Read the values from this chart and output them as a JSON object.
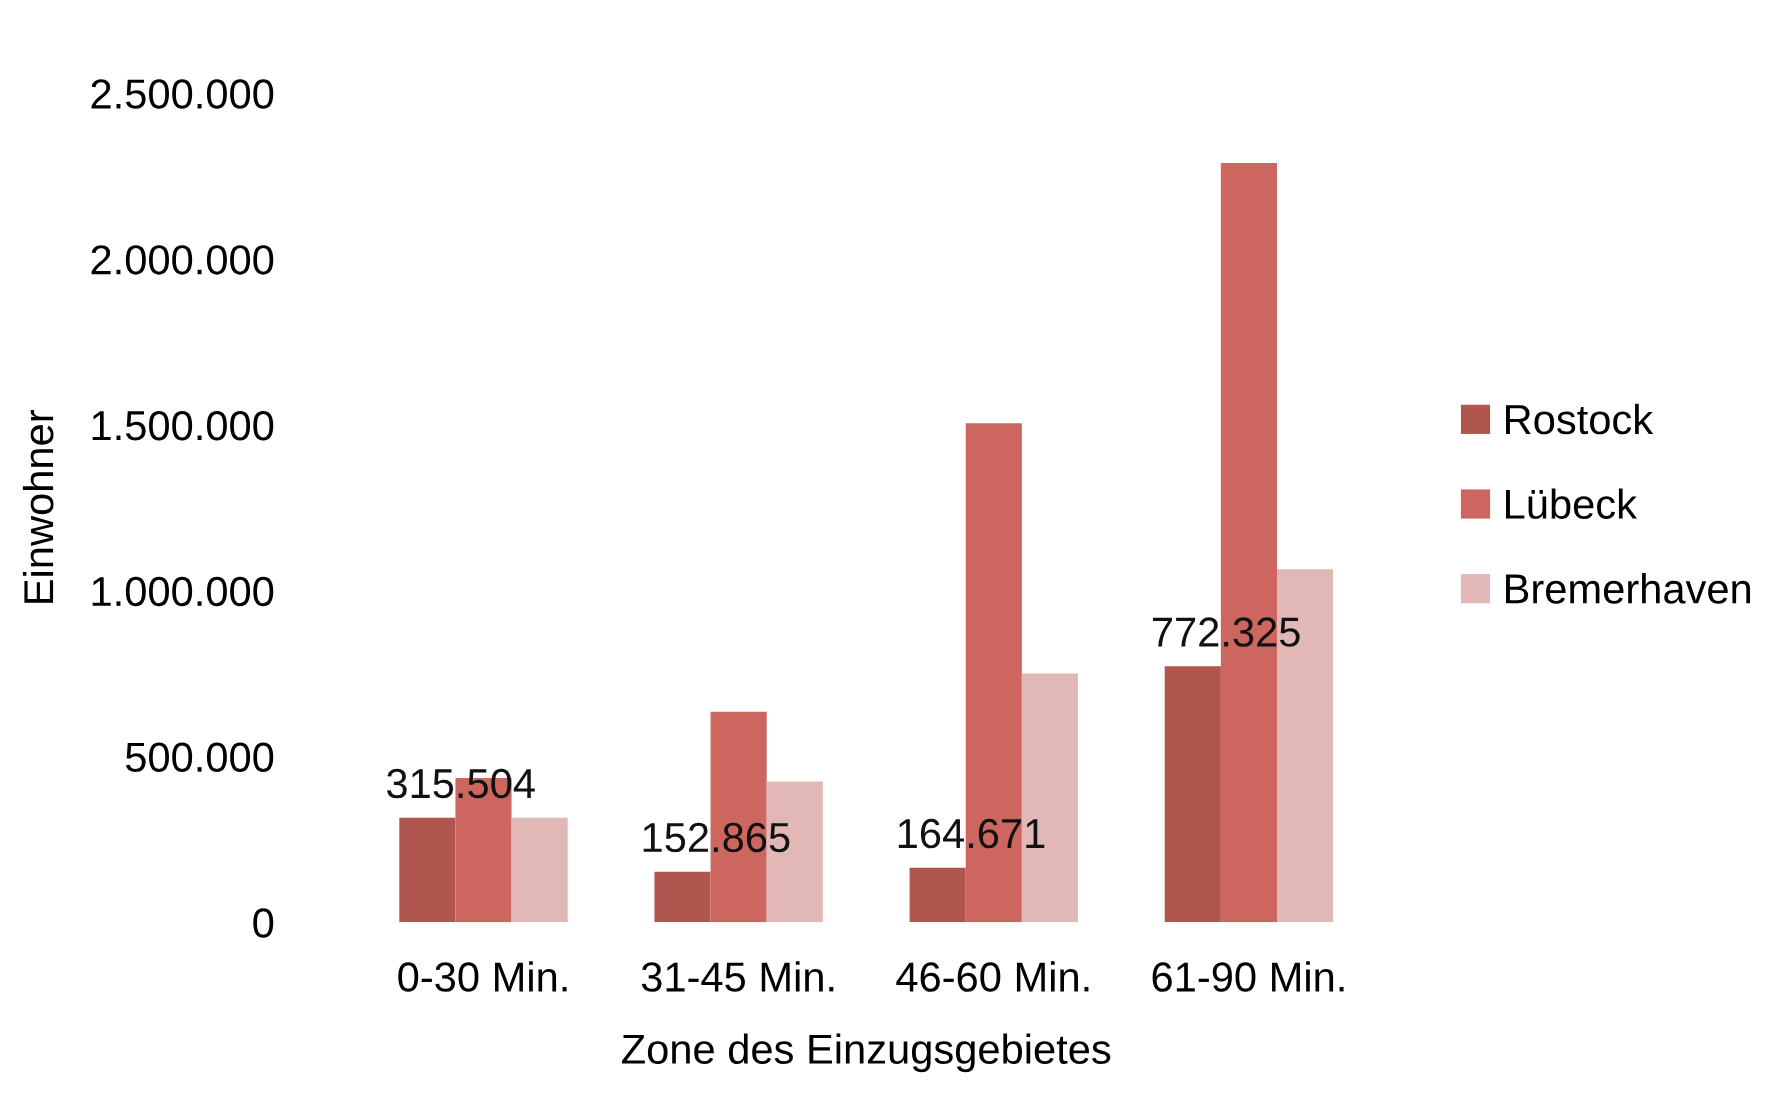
{
  "chart_data": {
    "type": "bar",
    "xlabel": "Zone des Einzugsgebietes",
    "ylabel": "Einwohner",
    "categories": [
      "0-30 Min.",
      "31-45 Min.",
      "46-60 Min.",
      "61-90 Min."
    ],
    "series": [
      {
        "name": "Rostock",
        "color": "#b0564e",
        "values": [
          315504,
          152865,
          164671,
          772325
        ],
        "value_labels": [
          "315.504",
          "152.865",
          "164.671",
          "772.325"
        ]
      },
      {
        "name": "Lübeck",
        "color": "#cc665f",
        "values": [
          435000,
          635000,
          1505000,
          2290000
        ]
      },
      {
        "name": "Bremerhaven",
        "color": "#e2b8b6",
        "values": [
          315000,
          425000,
          750000,
          1065000
        ]
      }
    ],
    "ylim": [
      0,
      2500000
    ],
    "yticks": [
      {
        "value": 0,
        "label": "0"
      },
      {
        "value": 500000,
        "label": "500.000"
      },
      {
        "value": 1000000,
        "label": "1.000.000"
      },
      {
        "value": 1500000,
        "label": "1.500.000"
      },
      {
        "value": 2000000,
        "label": "2.000.000"
      },
      {
        "value": 2500000,
        "label": "2.500.000"
      }
    ],
    "grid": false,
    "legend": "right"
  }
}
